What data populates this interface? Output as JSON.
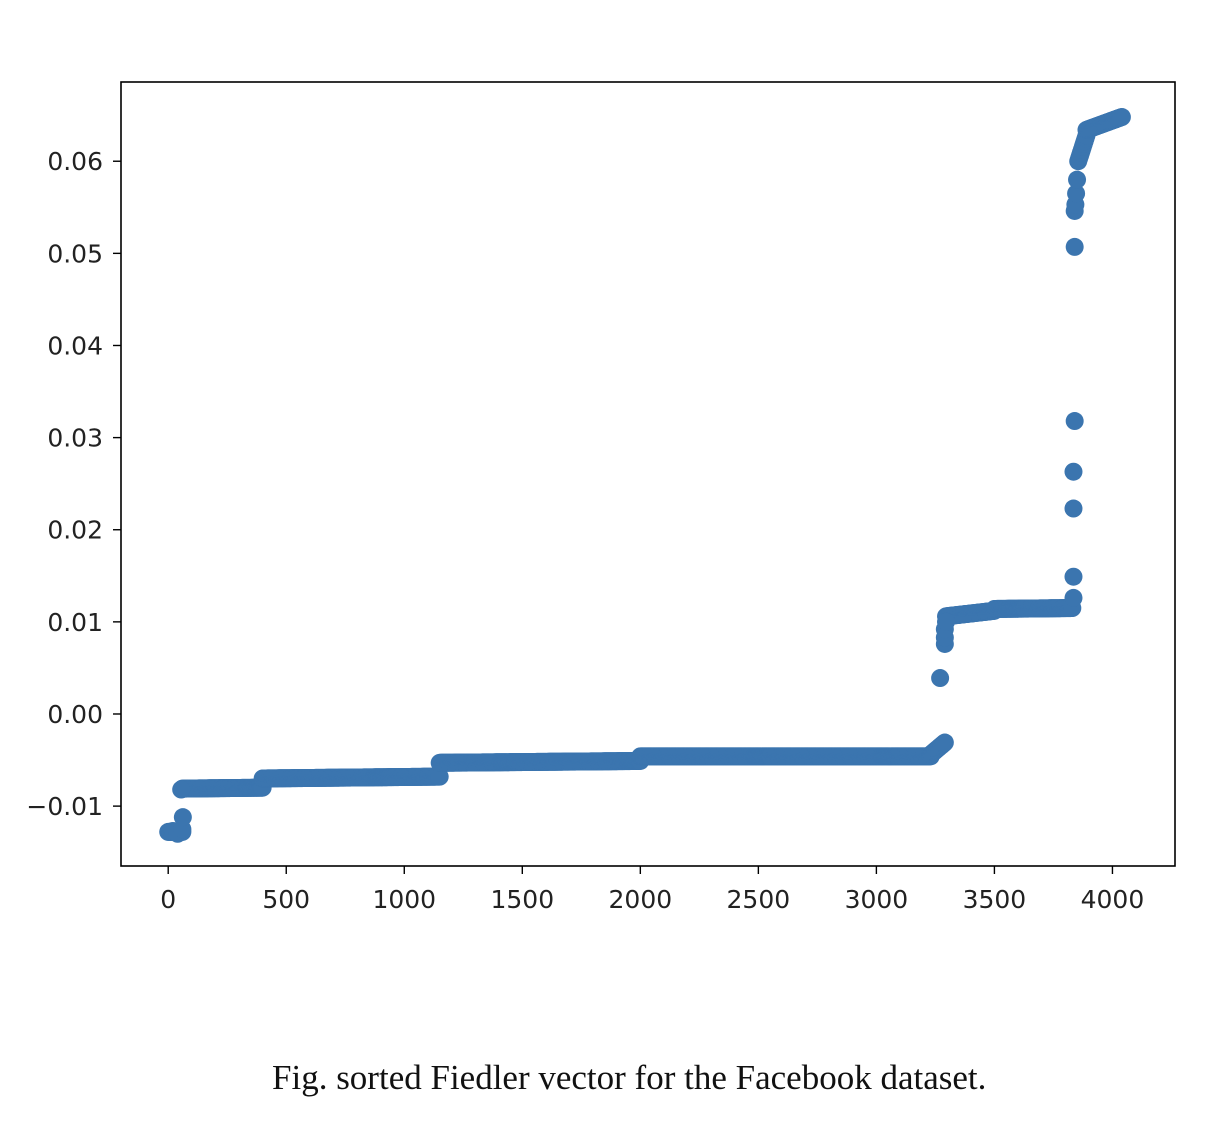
{
  "chart_data": {
    "type": "scatter",
    "title": "",
    "xlabel": "",
    "ylabel": "",
    "xlim": [
      -200,
      4265
    ],
    "ylim": [
      -0.0165,
      0.0686
    ],
    "xticks": [
      0,
      500,
      1000,
      1500,
      2000,
      2500,
      3000,
      3500,
      4000
    ],
    "xtick_labels": [
      "0",
      "500",
      "1000",
      "1500",
      "2000",
      "2500",
      "3000",
      "3500",
      "4000"
    ],
    "yticks": [
      -0.01,
      0.0,
      0.01,
      0.02,
      0.03,
      0.04,
      0.05,
      0.06
    ],
    "ytick_labels": [
      "−0.01",
      "0.00",
      "0.01",
      "0.02",
      "0.03",
      "0.04",
      "0.05",
      "0.06"
    ],
    "grid": false,
    "marker_color": "#3b75af",
    "series": [
      {
        "points_description": "sorted values, piecewise",
        "segments": [
          {
            "x0": 0,
            "x1": 60,
            "y0": -0.0128,
            "y1": -0.0128
          },
          {
            "x0": 60,
            "x1": 400,
            "y0": -0.0081,
            "y1": -0.008
          },
          {
            "x0": 400,
            "x1": 1150,
            "y0": -0.007,
            "y1": -0.0068
          },
          {
            "x0": 1150,
            "x1": 2000,
            "y0": -0.0053,
            "y1": -0.0051
          },
          {
            "x0": 2000,
            "x1": 3230,
            "y0": -0.0046,
            "y1": -0.0046
          },
          {
            "x0": 3230,
            "x1": 3290,
            "y0": -0.0044,
            "y1": -0.0031
          },
          {
            "x0": 3295,
            "x1": 3500,
            "y0": 0.0106,
            "y1": 0.0112
          },
          {
            "x0": 3500,
            "x1": 3830,
            "y0": 0.0114,
            "y1": 0.0115
          },
          {
            "x0": 3855,
            "x1": 3890,
            "y0": 0.06,
            "y1": 0.0628
          },
          {
            "x0": 3890,
            "x1": 4040,
            "y0": 0.0634,
            "y1": 0.0648
          }
        ],
        "extra_points": [
          {
            "x": 20,
            "y": -0.0127
          },
          {
            "x": 40,
            "y": -0.013
          },
          {
            "x": 60,
            "y": -0.0125
          },
          {
            "x": 62,
            "y": -0.0112
          },
          {
            "x": 55,
            "y": -0.0082
          },
          {
            "x": 3270,
            "y": 0.0039
          },
          {
            "x": 3290,
            "y": 0.0076
          },
          {
            "x": 3290,
            "y": 0.0083
          },
          {
            "x": 3290,
            "y": 0.0092
          },
          {
            "x": 3295,
            "y": 0.01
          },
          {
            "x": 3835,
            "y": 0.0126
          },
          {
            "x": 3835,
            "y": 0.0149
          },
          {
            "x": 3835,
            "y": 0.0223
          },
          {
            "x": 3835,
            "y": 0.0263
          },
          {
            "x": 3840,
            "y": 0.0318
          },
          {
            "x": 3840,
            "y": 0.0507
          },
          {
            "x": 3840,
            "y": 0.0546
          },
          {
            "x": 3843,
            "y": 0.0553
          },
          {
            "x": 3846,
            "y": 0.0565
          },
          {
            "x": 3850,
            "y": 0.058
          }
        ]
      }
    ]
  },
  "caption": "Fig. sorted Fiedler vector for the Facebook dataset."
}
